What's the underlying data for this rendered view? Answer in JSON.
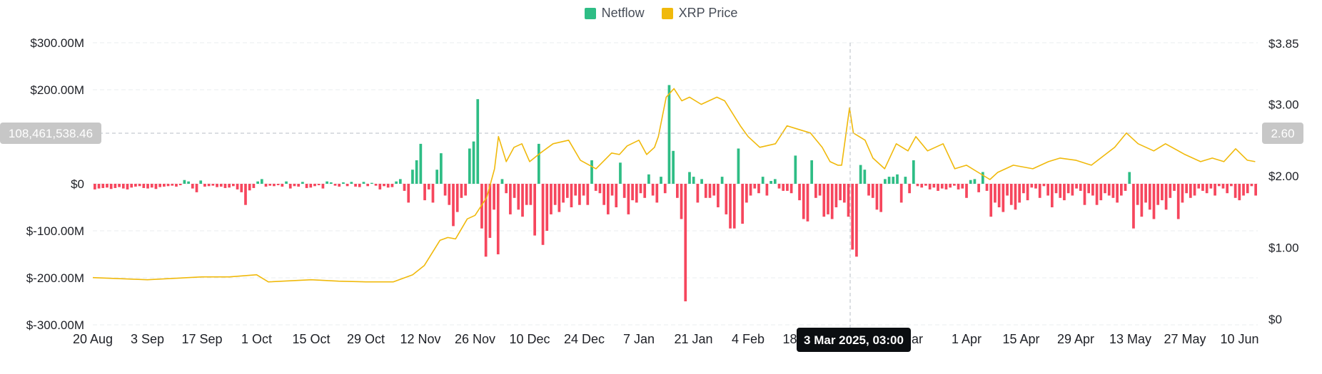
{
  "legend": [
    {
      "name": "Netflow",
      "color": "#2ebd85"
    },
    {
      "name": "XRP Price",
      "color": "#f0b90b"
    }
  ],
  "colors": {
    "inflow_positive": "#2ebd85",
    "outflow_negative": "#f6465d",
    "price_line": "#f0b90b",
    "grid": "#eaecef",
    "crosshair_label_bg": "#c7c7c7",
    "tooltip_bg": "#0b0e11"
  },
  "crosshair": {
    "date_label": "3 Mar 2025, 03:00",
    "left_value_label": "108,461,538.46",
    "right_value_label": "2.60"
  },
  "chart_data": {
    "type": "bar",
    "title": "",
    "xlabel": "",
    "ylabel": "",
    "x_tick_labels": [
      "20 Aug",
      "3 Sep",
      "17 Sep",
      "1 Oct",
      "15 Oct",
      "29 Oct",
      "12 Nov",
      "26 Nov",
      "10 Dec",
      "24 Dec",
      "7 Jan",
      "21 Jan",
      "4 Feb",
      "18 Feb",
      "3 Mar",
      "Mar",
      "1 Apr",
      "15 Apr",
      "29 Apr",
      "13 May",
      "27 May",
      "10 Jun"
    ],
    "y_left": {
      "ticks": [
        300,
        200,
        0,
        -100,
        -200,
        -300
      ],
      "tick_labels": [
        "$300.00M",
        "$200.00M",
        "$0",
        "$-100.00M",
        "$-200.00M",
        "$-300.00M"
      ],
      "ylim": [
        -300,
        300
      ],
      "unit": "M USD"
    },
    "y_right": {
      "ticks": [
        3.85,
        3.0,
        2.0,
        1.0,
        0
      ],
      "tick_labels": [
        "$3.85",
        "$3.00",
        "$2.00",
        "$1.00",
        "$0"
      ],
      "ylim": [
        0,
        3.85
      ],
      "unit": "USD"
    },
    "grid": true,
    "legend_position": "top-center",
    "series": [
      {
        "name": "Netflow",
        "type": "bar",
        "axis": "left",
        "values": [
          -12,
          -10,
          -9,
          -8,
          -11,
          -9,
          -7,
          -10,
          -12,
          -8,
          -6,
          -5,
          -9,
          -10,
          -8,
          -11,
          -7,
          -6,
          -5,
          -4,
          -6,
          -3,
          8,
          5,
          -10,
          -18,
          7,
          -6,
          -5,
          -4,
          -7,
          -6,
          -9,
          -8,
          -5,
          -12,
          -18,
          -45,
          -14,
          -9,
          5,
          10,
          -6,
          -4,
          -5,
          -3,
          -6,
          5,
          -10,
          -5,
          -6,
          4,
          -9,
          -8,
          -5,
          -3,
          -10,
          5,
          3,
          -4,
          -6,
          3,
          -5,
          4,
          -6,
          -7,
          4,
          -5,
          2,
          -4,
          -12,
          -5,
          -8,
          -7,
          5,
          10,
          -15,
          -40,
          30,
          50,
          85,
          -35,
          -12,
          -40,
          30,
          65,
          -25,
          -45,
          -90,
          -60,
          -30,
          -25,
          75,
          90,
          180,
          -95,
          -155,
          -115,
          -55,
          -150,
          10,
          -20,
          -65,
          -30,
          -55,
          -70,
          -45,
          -45,
          -110,
          85,
          -130,
          -100,
          -65,
          -45,
          -60,
          -40,
          -30,
          -50,
          -25,
          -45,
          -25,
          -45,
          50,
          -15,
          -20,
          -45,
          -65,
          -25,
          -50,
          45,
          -30,
          -65,
          -35,
          -40,
          -20,
          -30,
          20,
          -25,
          -40,
          15,
          -20,
          210,
          70,
          -30,
          -75,
          -250,
          25,
          15,
          -40,
          10,
          -30,
          -30,
          -25,
          -50,
          15,
          -65,
          -95,
          -95,
          75,
          -85,
          -40,
          -25,
          -10,
          -20,
          15,
          -25,
          6,
          10,
          -10,
          -15,
          -15,
          -20,
          60,
          -35,
          -75,
          -80,
          50,
          -30,
          -25,
          -70,
          -65,
          -75,
          -50,
          -35,
          -40,
          -70,
          -140,
          -155,
          40,
          30,
          -25,
          -30,
          -55,
          -60,
          10,
          15,
          15,
          20,
          -40,
          15,
          -20,
          50,
          -5,
          -8,
          -4,
          -12,
          -8,
          -15,
          -10,
          -12,
          -8,
          -4,
          -12,
          -10,
          -30,
          8,
          10,
          -18,
          25,
          -15,
          -70,
          -40,
          -50,
          -60,
          -25,
          -45,
          -55,
          -40,
          -20,
          -35,
          -8,
          -10,
          -30,
          -5,
          -25,
          -50,
          -20,
          -30,
          -35,
          -20,
          -25,
          -10,
          -15,
          -45,
          -20,
          -25,
          -45,
          -35,
          -20,
          -25,
          -30,
          -40,
          -25,
          -15,
          25,
          -95,
          -45,
          -70,
          -40,
          -55,
          -75,
          -45,
          -35,
          -55,
          -30,
          -15,
          -75,
          -40,
          -20,
          -30,
          -25,
          -10,
          -15,
          -20,
          -10,
          -25,
          -5,
          -10,
          -20,
          -5,
          -30,
          -35,
          -25,
          -20,
          -5,
          -25
        ]
      },
      {
        "name": "XRP Price",
        "type": "line",
        "axis": "right",
        "points": [
          [
            "20 Aug",
            0.58
          ],
          [
            "3 Sep",
            0.55
          ],
          [
            "10 Sep",
            0.57
          ],
          [
            "17 Sep",
            0.59
          ],
          [
            "24 Sep",
            0.59
          ],
          [
            "1 Oct",
            0.62
          ],
          [
            "4 Oct",
            0.52
          ],
          [
            "15 Oct",
            0.55
          ],
          [
            "22 Oct",
            0.53
          ],
          [
            "29 Oct",
            0.52
          ],
          [
            "5 Nov",
            0.52
          ],
          [
            "10 Nov",
            0.62
          ],
          [
            "13 Nov",
            0.75
          ],
          [
            "17 Nov",
            1.1
          ],
          [
            "19 Nov",
            1.14
          ],
          [
            "21 Nov",
            1.12
          ],
          [
            "24 Nov",
            1.4
          ],
          [
            "26 Nov",
            1.45
          ],
          [
            "29 Nov",
            1.7
          ],
          [
            "1 Dec",
            2.1
          ],
          [
            "2 Dec",
            2.55
          ],
          [
            "4 Dec",
            2.2
          ],
          [
            "6 Dec",
            2.4
          ],
          [
            "8 Dec",
            2.45
          ],
          [
            "10 Dec",
            2.2
          ],
          [
            "13 Dec",
            2.33
          ],
          [
            "16 Dec",
            2.45
          ],
          [
            "20 Dec",
            2.5
          ],
          [
            "23 Dec",
            2.22
          ],
          [
            "27 Dec",
            2.1
          ],
          [
            "31 Dec",
            2.32
          ],
          [
            "2 Jan",
            2.3
          ],
          [
            "4 Jan",
            2.42
          ],
          [
            "7 Jan",
            2.5
          ],
          [
            "9 Jan",
            2.3
          ],
          [
            "11 Jan",
            2.4
          ],
          [
            "12 Jan",
            2.55
          ],
          [
            "14 Jan",
            3.1
          ],
          [
            "16 Jan",
            3.22
          ],
          [
            "18 Jan",
            3.05
          ],
          [
            "20 Jan",
            3.1
          ],
          [
            "23 Jan",
            3.0
          ],
          [
            "27 Jan",
            3.1
          ],
          [
            "29 Jan",
            3.05
          ],
          [
            "2 Feb",
            2.7
          ],
          [
            "4 Feb",
            2.55
          ],
          [
            "7 Feb",
            2.4
          ],
          [
            "11 Feb",
            2.45
          ],
          [
            "14 Feb",
            2.7
          ],
          [
            "17 Feb",
            2.65
          ],
          [
            "20 Feb",
            2.6
          ],
          [
            "23 Feb",
            2.4
          ],
          [
            "25 Feb",
            2.2
          ],
          [
            "27 Feb",
            2.15
          ],
          [
            "28 Feb",
            2.15
          ],
          [
            "2 Mar",
            2.95
          ],
          [
            "3 Mar",
            2.6
          ],
          [
            "6 Mar",
            2.5
          ],
          [
            "8 Mar",
            2.25
          ],
          [
            "11 Mar",
            2.1
          ],
          [
            "14 Mar",
            2.45
          ],
          [
            "17 Mar",
            2.35
          ],
          [
            "19 Mar",
            2.55
          ],
          [
            "22 Mar",
            2.35
          ],
          [
            "26 Mar",
            2.45
          ],
          [
            "29 Mar",
            2.1
          ],
          [
            "1 Apr",
            2.15
          ],
          [
            "4 Apr",
            2.05
          ],
          [
            "7 Apr",
            1.95
          ],
          [
            "9 Apr",
            2.05
          ],
          [
            "13 Apr",
            2.15
          ],
          [
            "18 Apr",
            2.1
          ],
          [
            "22 Apr",
            2.2
          ],
          [
            "25 Apr",
            2.25
          ],
          [
            "29 Apr",
            2.22
          ],
          [
            "3 May",
            2.15
          ],
          [
            "9 May",
            2.4
          ],
          [
            "12 May",
            2.6
          ],
          [
            "15 May",
            2.45
          ],
          [
            "19 May",
            2.35
          ],
          [
            "22 May",
            2.45
          ],
          [
            "27 May",
            2.3
          ],
          [
            "31 May",
            2.2
          ],
          [
            "3 Jun",
            2.25
          ],
          [
            "6 Jun",
            2.2
          ],
          [
            "9 Jun",
            2.38
          ],
          [
            "12 Jun",
            2.22
          ],
          [
            "14 Jun",
            2.2
          ]
        ]
      }
    ]
  }
}
